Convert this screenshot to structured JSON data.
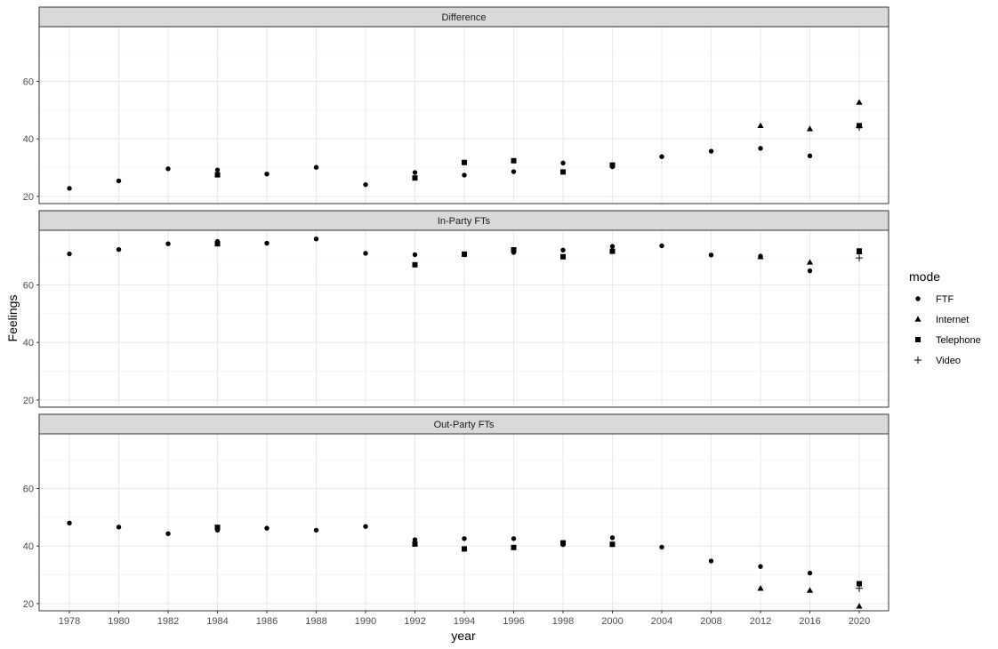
{
  "chart_data": {
    "type": "scatter",
    "xlabel": "year",
    "ylabel": "Feelings",
    "x_categories": [
      "1978",
      "1980",
      "1982",
      "1984",
      "1986",
      "1988",
      "1990",
      "1992",
      "1994",
      "1996",
      "1998",
      "2000",
      "2004",
      "2008",
      "2012",
      "2016",
      "2020"
    ],
    "y_ticks": [
      20,
      40,
      60
    ],
    "ylim": [
      17.5,
      79
    ],
    "legend": {
      "title": "mode",
      "position": "right",
      "entries": [
        "FTF",
        "Internet",
        "Telephone",
        "Video"
      ]
    },
    "facets": [
      {
        "title": "Difference",
        "series": [
          {
            "name": "FTF",
            "points": [
              [
                "1978",
                22.8
              ],
              [
                "1980",
                25.4
              ],
              [
                "1982",
                29.6
              ],
              [
                "1984",
                29.2
              ],
              [
                "1986",
                27.8
              ],
              [
                "1988",
                30.1
              ],
              [
                "1990",
                24.1
              ],
              [
                "1992",
                28.3
              ],
              [
                "1994",
                27.4
              ],
              [
                "1996",
                28.6
              ],
              [
                "1998",
                31.6
              ],
              [
                "2000",
                30.3
              ],
              [
                "2004",
                33.8
              ],
              [
                "2008",
                35.7
              ],
              [
                "2012",
                36.7
              ],
              [
                "2016",
                34.1
              ]
            ]
          },
          {
            "name": "Internet",
            "points": [
              [
                "2012",
                44.6
              ],
              [
                "2016",
                43.5
              ],
              [
                "2020",
                52.7
              ]
            ]
          },
          {
            "name": "Telephone",
            "points": [
              [
                "1984",
                27.5
              ],
              [
                "1992",
                26.4
              ],
              [
                "1994",
                31.8
              ],
              [
                "1996",
                32.4
              ],
              [
                "1998",
                28.5
              ],
              [
                "2000",
                30.9
              ],
              [
                "2020",
                44.6
              ]
            ]
          },
          {
            "name": "Video",
            "points": [
              [
                "2020",
                44.0
              ]
            ]
          }
        ]
      },
      {
        "title": "In-Party FTs",
        "series": [
          {
            "name": "FTF",
            "points": [
              [
                "1978",
                70.8
              ],
              [
                "1980",
                72.3
              ],
              [
                "1982",
                74.3
              ],
              [
                "1984",
                75.1
              ],
              [
                "1986",
                74.5
              ],
              [
                "1988",
                76.0
              ],
              [
                "1990",
                71.0
              ],
              [
                "1992",
                70.5
              ],
              [
                "1994",
                70.5
              ],
              [
                "1996",
                71.3
              ],
              [
                "1998",
                72.1
              ],
              [
                "2000",
                73.4
              ],
              [
                "2004",
                73.6
              ],
              [
                "2008",
                70.4
              ],
              [
                "2012",
                70.0
              ],
              [
                "2016",
                64.9
              ]
            ]
          },
          {
            "name": "Internet",
            "points": [
              [
                "2012",
                69.8
              ],
              [
                "2016",
                67.9
              ],
              [
                "2020",
                71.5
              ]
            ]
          },
          {
            "name": "Telephone",
            "points": [
              [
                "1984",
                74.3
              ],
              [
                "1992",
                67.0
              ],
              [
                "1994",
                70.7
              ],
              [
                "1996",
                72.2
              ],
              [
                "1998",
                69.8
              ],
              [
                "2000",
                71.7
              ],
              [
                "2020",
                71.8
              ]
            ]
          },
          {
            "name": "Video",
            "points": [
              [
                "2020",
                69.4
              ]
            ]
          }
        ]
      },
      {
        "title": "Out-Party FTs",
        "series": [
          {
            "name": "FTF",
            "points": [
              [
                "1978",
                48.0
              ],
              [
                "1980",
                46.6
              ],
              [
                "1982",
                44.3
              ],
              [
                "1984",
                45.5
              ],
              [
                "1986",
                46.2
              ],
              [
                "1988",
                45.5
              ],
              [
                "1990",
                46.8
              ],
              [
                "1992",
                42.2
              ],
              [
                "1994",
                42.6
              ],
              [
                "1996",
                42.6
              ],
              [
                "1998",
                40.5
              ],
              [
                "2000",
                42.9
              ],
              [
                "2004",
                39.6
              ],
              [
                "2008",
                34.8
              ],
              [
                "2012",
                32.9
              ],
              [
                "2016",
                30.6
              ]
            ]
          },
          {
            "name": "Internet",
            "points": [
              [
                "2012",
                25.3
              ],
              [
                "2016",
                24.6
              ],
              [
                "2020",
                19.1
              ]
            ]
          },
          {
            "name": "Telephone",
            "points": [
              [
                "1984",
                46.5
              ],
              [
                "1992",
                40.7
              ],
              [
                "1994",
                39.0
              ],
              [
                "1996",
                39.5
              ],
              [
                "1998",
                41.1
              ],
              [
                "2000",
                40.6
              ],
              [
                "2020",
                26.9
              ]
            ]
          },
          {
            "name": "Video",
            "points": [
              [
                "2020",
                25.3
              ]
            ]
          }
        ]
      }
    ]
  }
}
